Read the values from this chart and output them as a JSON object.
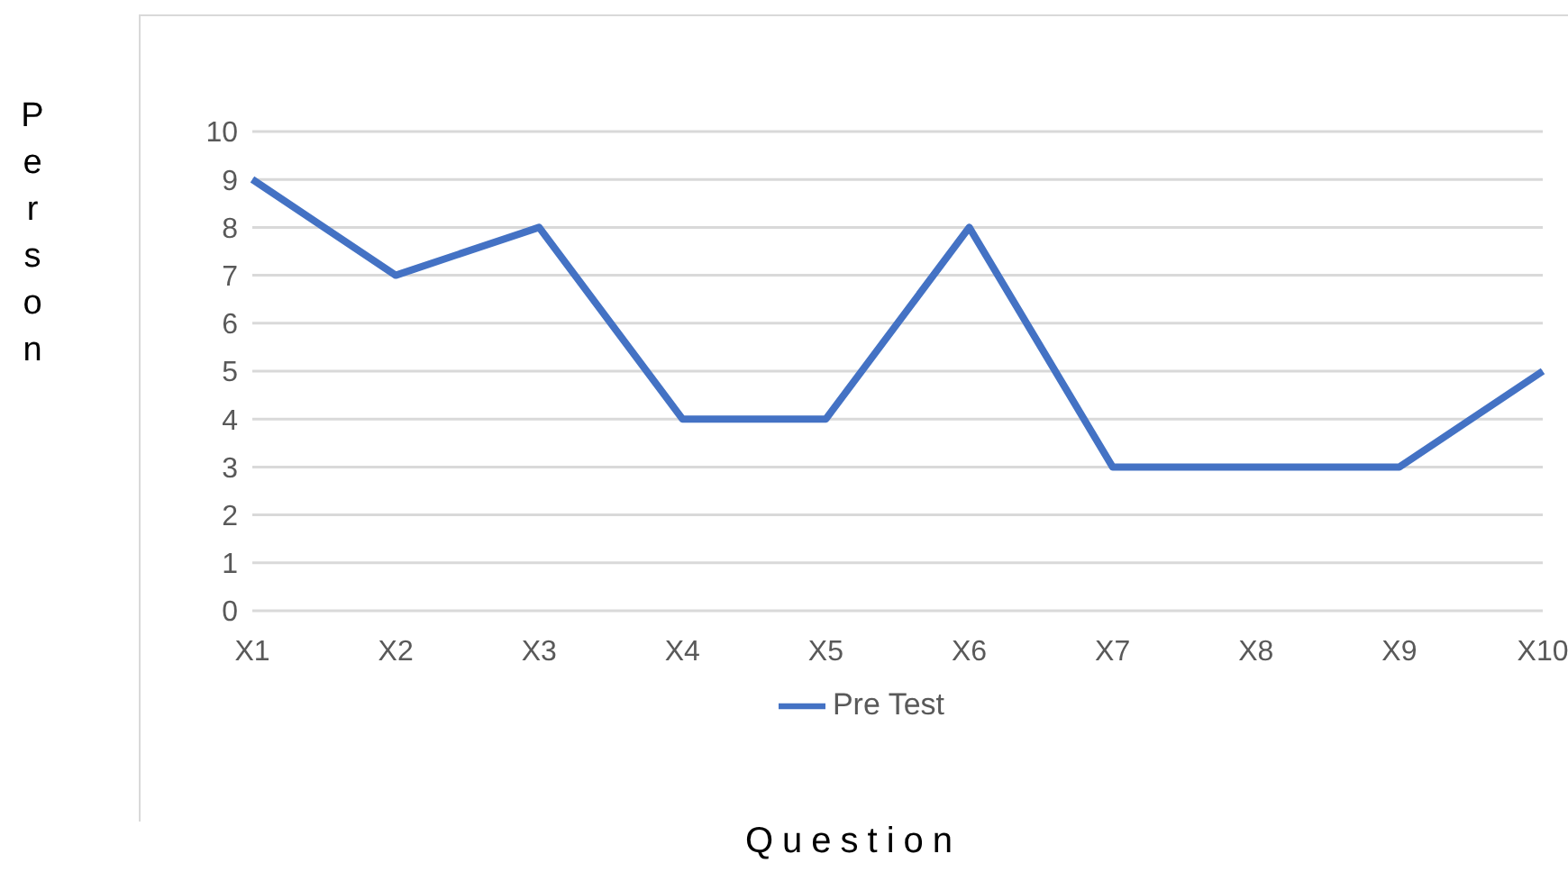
{
  "chart_data": {
    "type": "line",
    "xlabel": "Question",
    "ylabel": "Person",
    "categories": [
      "X1",
      "X2",
      "X3",
      "X4",
      "X5",
      "X6",
      "X7",
      "X8",
      "X9",
      "X10"
    ],
    "series": [
      {
        "name": "Pre Test",
        "color": "#4472c4",
        "values": [
          9,
          7,
          8,
          4,
          4,
          8,
          3,
          3,
          3,
          5
        ]
      }
    ],
    "ylim": [
      0,
      10
    ],
    "yticks": [
      0,
      1,
      2,
      3,
      4,
      5,
      6,
      7,
      8,
      9,
      10
    ],
    "grid": "y",
    "legend": "bottom",
    "marker": "none",
    "line_style": "solid"
  }
}
